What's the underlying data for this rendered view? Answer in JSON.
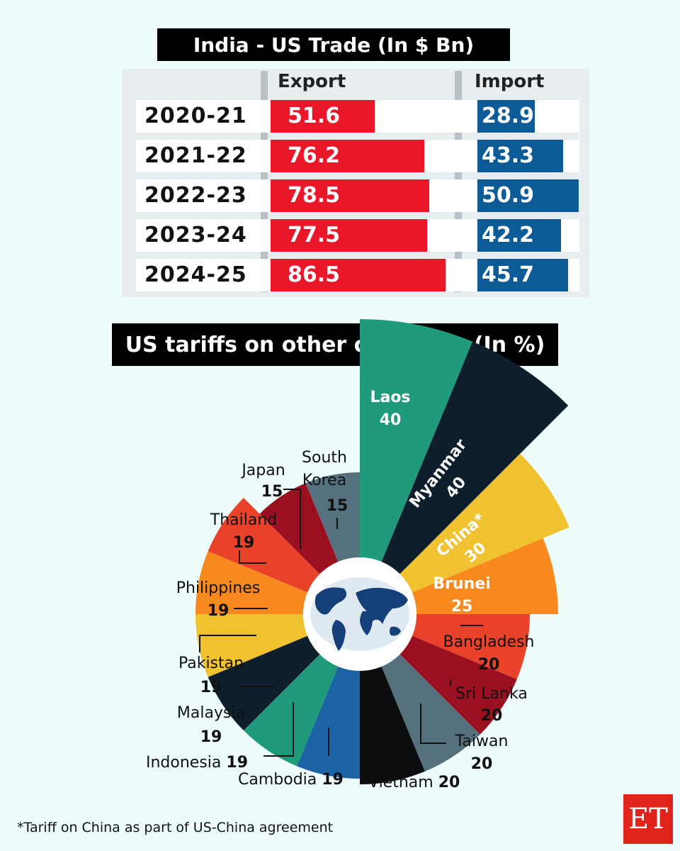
{
  "chart_data": [
    {
      "type": "bar",
      "title": "India - US Trade (In $ Bn)",
      "categories": [
        "2020-21",
        "2021-22",
        "2022-23",
        "2023-24",
        "2024-25"
      ],
      "series": [
        {
          "name": "Export",
          "values": [
            51.6,
            76.2,
            78.5,
            77.5,
            86.5
          ],
          "color": "#ea1728"
        },
        {
          "name": "Import",
          "values": [
            28.9,
            43.3,
            50.9,
            42.2,
            45.7
          ],
          "color": "#0d5b96"
        }
      ]
    },
    {
      "type": "pie",
      "title": "US tariffs on other countries (In %)",
      "slices": [
        {
          "label": "Laos",
          "value": 40,
          "color": "#1f9a7b"
        },
        {
          "label": "Myanmar",
          "value": 40,
          "color": "#0e1e2c"
        },
        {
          "label": "China*",
          "value": 30,
          "color": "#f0c22f"
        },
        {
          "label": "Brunei",
          "value": 25,
          "color": "#f7891f"
        },
        {
          "label": "Bangladesh",
          "value": 20,
          "color": "#e8422a"
        },
        {
          "label": "Sri Lanka",
          "value": 20,
          "color": "#9a1020"
        },
        {
          "label": "Taiwan",
          "value": 20,
          "color": "#56717e"
        },
        {
          "label": "Vietnam",
          "value": 20,
          "color": "#0b0d0f"
        },
        {
          "label": "Cambodia",
          "value": 19,
          "color": "#1c63a6"
        },
        {
          "label": "Indonesia",
          "value": 19,
          "color": "#1f9a7b"
        },
        {
          "label": "Malaysia",
          "value": 19,
          "color": "#0e1e2c"
        },
        {
          "label": "Pakistan",
          "value": 19,
          "color": "#f0c22f"
        },
        {
          "label": "Philippines",
          "value": 19,
          "color": "#f7891f"
        },
        {
          "label": "Thailand",
          "value": 19,
          "color": "#e8422a"
        },
        {
          "label": "Japan",
          "value": 15,
          "color": "#9a1020"
        },
        {
          "label": "South Korea",
          "value": 15,
          "color": "#56717e"
        }
      ]
    }
  ],
  "footnote": "*Tariff on China as part of US-China agreement",
  "logo": "ET",
  "icons": {
    "center": "world-map-icon"
  }
}
